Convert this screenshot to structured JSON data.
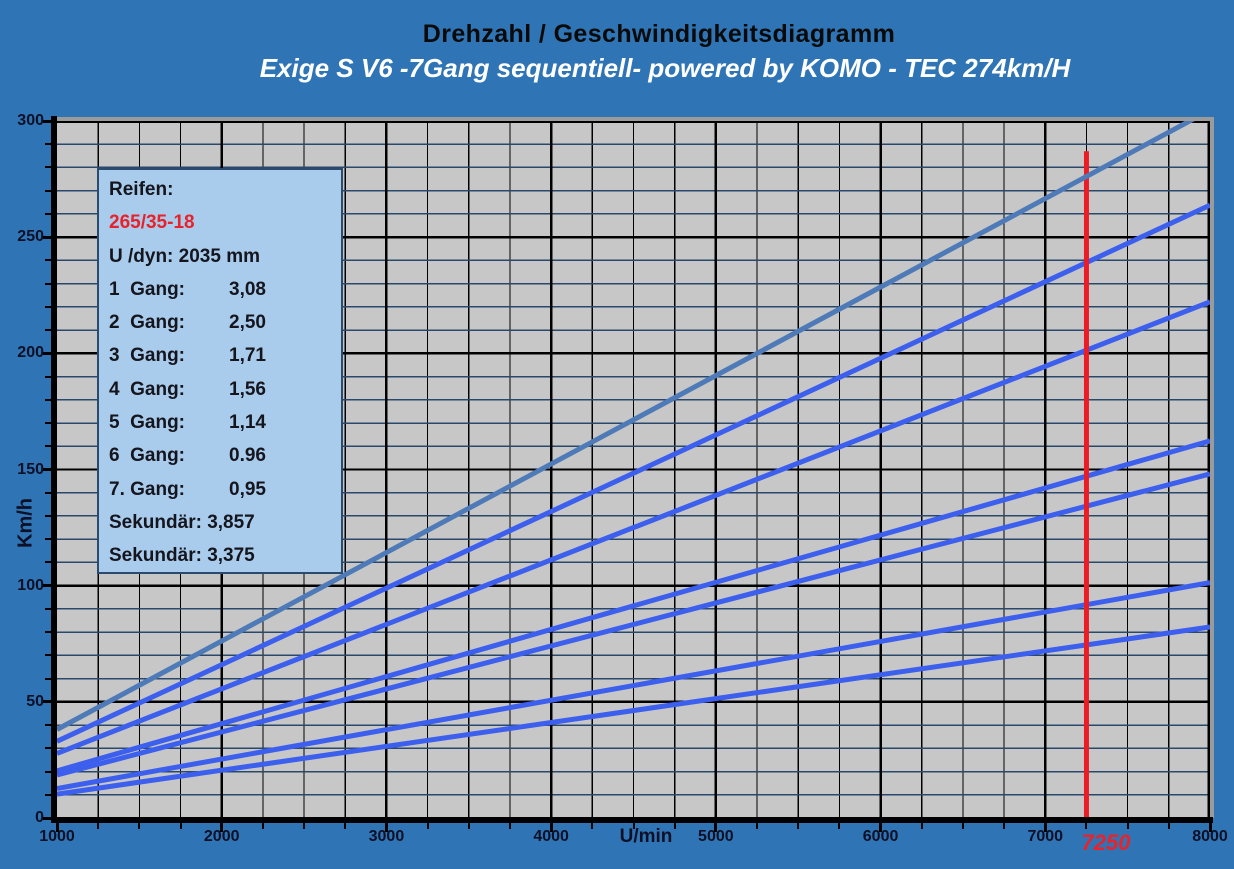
{
  "colors": {
    "background": "#2F75B5",
    "plot_background": "#C7C7C7",
    "grid_minor_horizontal": "#29486B",
    "grid_major": "#000000",
    "gear_line_blue": "#3C5FEE",
    "gear7_line_steel": "#4E7BB8",
    "marker_red": "#EC1C24",
    "legend_background": "#A9CBEC",
    "legend_border": "#2A4A6E",
    "tire_text_red": "#E8222A",
    "subtitle_white": "#FFFFFF",
    "title_black": "#0A0A0A"
  },
  "legend": {
    "rows": [
      {
        "label": "Reifen:",
        "value": "",
        "red": false
      },
      {
        "label": "265/35-18",
        "value": "",
        "red": true
      },
      {
        "label": "U /dyn: 2035 mm",
        "value": "",
        "red": false
      },
      {
        "label": "1  Gang:",
        "value": "3,08",
        "red": false
      },
      {
        "label": "2  Gang:",
        "value": "2,50",
        "red": false
      },
      {
        "label": "3  Gang:",
        "value": "1,71",
        "red": false
      },
      {
        "label": "4  Gang:",
        "value": "1,56",
        "red": false
      },
      {
        "label": "5  Gang:",
        "value": "1,14",
        "red": false
      },
      {
        "label": "6  Gang:",
        "value": "0.96",
        "red": false
      },
      {
        "label": "7. Gang:",
        "value": "0,95",
        "red": false
      },
      {
        "label": "Sekundär: 3,857",
        "value": "",
        "red": false
      },
      {
        "label": "Sekundär: 3,375",
        "value": "",
        "red": false
      }
    ]
  },
  "chart_data": {
    "type": "line",
    "title": "Drehzahl / Geschwindigkeitsdiagramm",
    "subtitle": "Exige S V6 -7Gang sequentiell-  powered by KOMO - TEC 274km/H",
    "xlabel": "U/min",
    "ylabel": "Km/h",
    "xlim": [
      1000,
      8000
    ],
    "ylim": [
      0,
      300
    ],
    "x_major_step": 1000,
    "x_minor_step": 250,
    "y_major_step": 50,
    "y_minor_step": 10,
    "x_tick_labels": [
      "1000",
      "2000",
      "3000",
      "4000",
      "5000",
      "6000",
      "7000",
      "8000"
    ],
    "y_tick_labels": [
      "0",
      "50",
      "100",
      "150",
      "200",
      "250",
      "300"
    ],
    "grid": true,
    "legend_position": "upper-left",
    "tire": {
      "label": "Reifen:",
      "size": "265/35-18",
      "circumference_mm": 2035
    },
    "secondary_ratios": [
      3.857,
      3.375
    ],
    "series": [
      {
        "name": "1. Gang",
        "ratio": 3.08,
        "secondary": 3.857,
        "color": "#3C5FEE",
        "points": [
          [
            1000,
            10.3
          ],
          [
            8000,
            82.2
          ]
        ]
      },
      {
        "name": "2. Gang",
        "ratio": 2.5,
        "secondary": 3.857,
        "color": "#3C5FEE",
        "points": [
          [
            1000,
            12.7
          ],
          [
            8000,
            101.3
          ]
        ]
      },
      {
        "name": "3. Gang",
        "ratio": 1.71,
        "secondary": 3.857,
        "color": "#3C5FEE",
        "points": [
          [
            1000,
            18.5
          ],
          [
            8000,
            148.1
          ]
        ]
      },
      {
        "name": "4. Gang",
        "ratio": 1.56,
        "secondary": 3.857,
        "color": "#3C5FEE",
        "points": [
          [
            1000,
            20.3
          ],
          [
            8000,
            162.3
          ]
        ]
      },
      {
        "name": "5. Gang",
        "ratio": 1.14,
        "secondary": 3.857,
        "color": "#3C5FEE",
        "points": [
          [
            1000,
            27.8
          ],
          [
            8000,
            222.2
          ]
        ]
      },
      {
        "name": "6. Gang",
        "ratio": 0.96,
        "secondary": 3.857,
        "color": "#3C5FEE",
        "points": [
          [
            1000,
            33.0
          ],
          [
            8000,
            263.8
          ]
        ]
      },
      {
        "name": "7. Gang",
        "ratio": 0.95,
        "secondary": 3.375,
        "color": "#4E7BB8",
        "points": [
          [
            1000,
            38.1
          ],
          [
            8000,
            304.7
          ]
        ]
      }
    ],
    "marker_line": {
      "x": 7250,
      "y_top": 287,
      "label": "7250",
      "color": "#EC1C24"
    }
  }
}
